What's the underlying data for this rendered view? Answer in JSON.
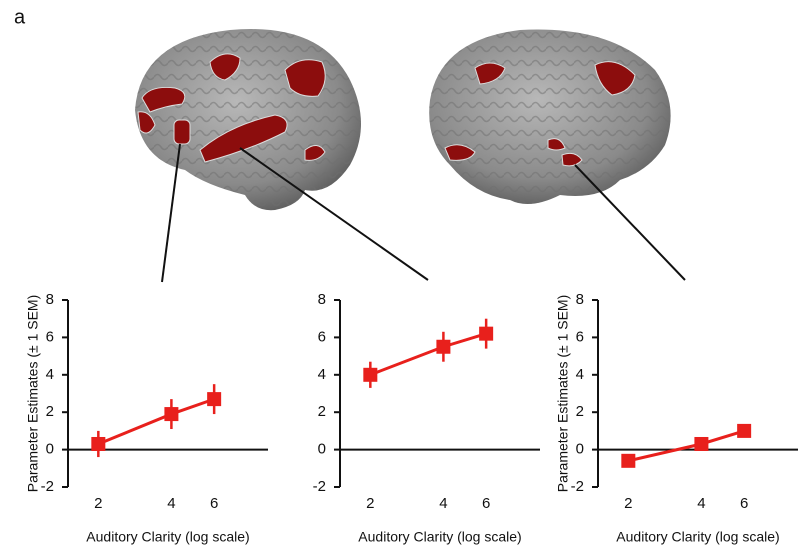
{
  "panel_label": "a",
  "chart_data": [
    {
      "type": "line",
      "x": [
        2,
        4,
        6
      ],
      "values": [
        0.3,
        1.9,
        2.7
      ],
      "errors": [
        0.7,
        0.8,
        0.8
      ],
      "color": "#e8201c",
      "xlabel": "Auditory Clarity (log scale)",
      "ylabel": "Parameter Estimates (± 1 SEM)",
      "xlim": [
        1.5,
        10
      ],
      "xticks": [
        2,
        4,
        6
      ],
      "xlog": true,
      "ylim": [
        -2,
        8
      ],
      "yticks": [
        -2,
        0,
        2,
        4,
        6,
        8
      ]
    },
    {
      "type": "line",
      "x": [
        2,
        4,
        6
      ],
      "values": [
        4.0,
        5.5,
        6.2
      ],
      "errors": [
        0.7,
        0.8,
        0.8
      ],
      "color": "#e8201c",
      "xlabel": "Auditory Clarity (log scale)",
      "xlim": [
        1.5,
        10
      ],
      "xticks": [
        2,
        4,
        6
      ],
      "xlog": true,
      "ylim": [
        -2,
        8
      ],
      "yticks": [
        -2,
        0,
        2,
        4,
        6,
        8
      ]
    },
    {
      "type": "line",
      "x": [
        2,
        4,
        6
      ],
      "values": [
        -0.6,
        0.3,
        1.0
      ],
      "errors": [
        0.2,
        0.2,
        0.35
      ],
      "color": "#e8201c",
      "xlabel": "Auditory Clarity (log scale)",
      "ylabel": "Parameter Estimates (± 1 SEM)",
      "xlim": [
        1.5,
        10
      ],
      "xticks": [
        2,
        4,
        6
      ],
      "xlog": true,
      "ylim": [
        -2,
        8
      ],
      "yticks": [
        -2,
        0,
        2,
        4,
        6,
        8
      ]
    }
  ]
}
